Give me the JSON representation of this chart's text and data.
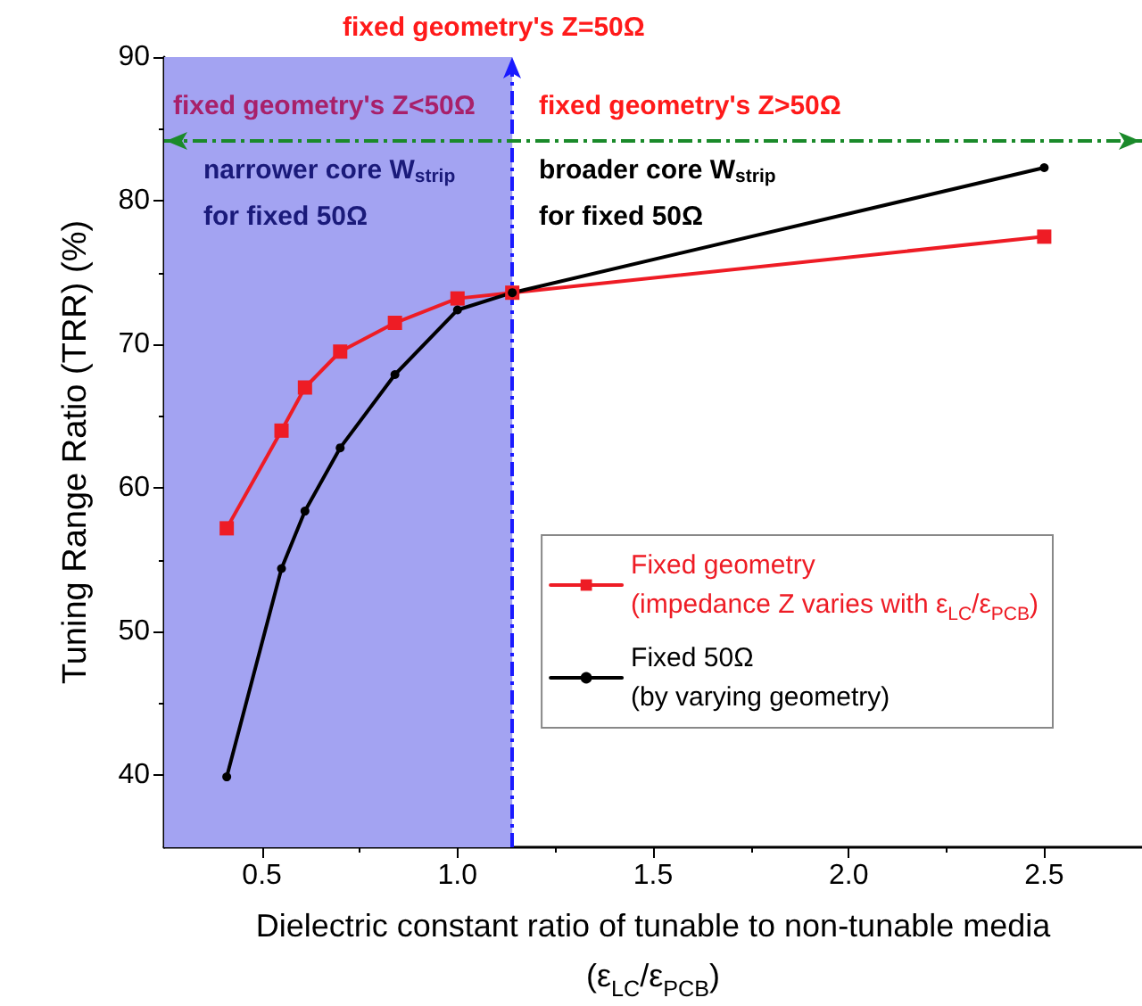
{
  "chart_data": {
    "type": "line",
    "xlabel": "Dielectric constant ratio of tunable to non-tunable media\n(ε$_{LC}$/ε$_{PCB}$)",
    "ylabel": "Tuning Range Ratio (TRR) (%)",
    "x": [
      0.41,
      0.55,
      0.61,
      0.7,
      0.84,
      1.0,
      1.14,
      2.5
    ],
    "series": [
      {
        "name": "Fixed geometry\n(impedance Z varies with ε$_{LC}$/ε$_{PCB}$)",
        "color": "#ee1c25",
        "marker": "square",
        "values": [
          57.2,
          64.0,
          67.0,
          69.5,
          71.5,
          73.2,
          73.6,
          77.5
        ]
      },
      {
        "name": "Fixed 50Ω\n(by varying geometry)",
        "color": "#000000",
        "marker": "circle",
        "values": [
          39.9,
          54.4,
          58.4,
          62.8,
          67.9,
          72.4,
          73.6,
          82.3
        ]
      }
    ],
    "xlim": [
      0.25,
      2.75
    ],
    "xticks": [
      0.5,
      {
        "value": 1,
        "label": "1.0"
      },
      1.5,
      {
        "value": 2,
        "label": "2.0"
      },
      2.5
    ],
    "ylim": [
      35,
      90
    ],
    "yticks": [
      40,
      50,
      60,
      70,
      80,
      90
    ],
    "bands": [
      {
        "axis": "x",
        "from": 0.25,
        "to": 1.14,
        "color": "#a3a3f2"
      }
    ],
    "ref_lines": [
      {
        "axis": "x",
        "value": 1.14,
        "color": "#1a1aff",
        "line_style": "dashed"
      },
      {
        "axis": "y",
        "value": 84.2,
        "color": "#1a8a2a",
        "line_style": "dashed"
      }
    ],
    "annotations": [
      "fixed geometry's Z<50Ω",
      "fixed geometry's Z>50Ω",
      "narrower core W$_{strip}$",
      "for fixed 50Ω",
      "broader core W$_{strip}$",
      "for fixed 50Ω",
      "fixed geometry's Z=50Ω"
    ],
    "legend": "right",
    "grid": false
  }
}
